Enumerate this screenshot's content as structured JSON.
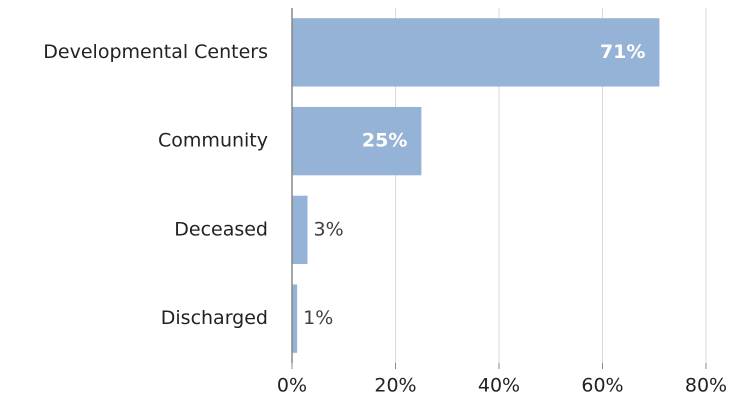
{
  "chart_data": {
    "type": "bar",
    "orientation": "horizontal",
    "categories": [
      "Developmental Centers",
      "Community",
      "Deceased",
      "Discharged"
    ],
    "values": [
      71,
      25,
      3,
      1
    ],
    "value_labels": [
      "71%",
      "25%",
      "3%",
      "1%"
    ],
    "color": "#95b3d7",
    "xlim": [
      0,
      80
    ],
    "xticks": [
      {
        "value": 0,
        "label": "0%"
      },
      {
        "value": 20,
        "label": "20%"
      },
      {
        "value": 40,
        "label": "40%"
      },
      {
        "value": 60,
        "label": "60%"
      },
      {
        "value": 80,
        "label": "80%"
      }
    ],
    "grid": true
  }
}
